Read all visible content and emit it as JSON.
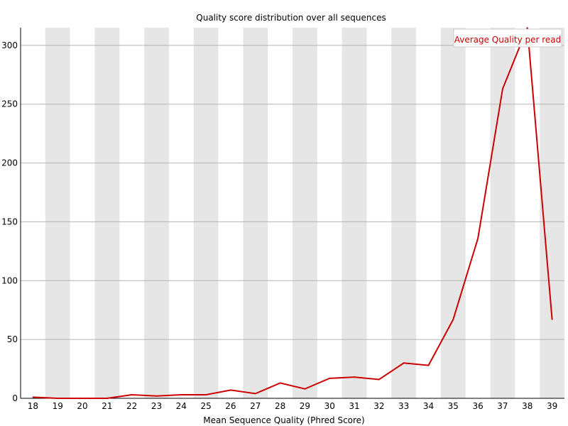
{
  "chart_data": {
    "type": "line",
    "title": "Quality score distribution over all sequences",
    "xlabel": "Mean Sequence Quality (Phred Score)",
    "ylabel": "",
    "x": [
      18,
      19,
      20,
      21,
      22,
      23,
      24,
      25,
      26,
      27,
      28,
      29,
      30,
      31,
      32,
      33,
      34,
      35,
      36,
      37,
      38,
      39
    ],
    "xlim": [
      18,
      39
    ],
    "ylim": [
      0,
      315
    ],
    "yticks": [
      0,
      50,
      100,
      150,
      200,
      250,
      300
    ],
    "series": [
      {
        "name": "Average Quality per read",
        "color": "#cc0000",
        "values": [
          1,
          0,
          0,
          0,
          3,
          2,
          3,
          3,
          7,
          4,
          13,
          8,
          17,
          18,
          16,
          30,
          28,
          67,
          136,
          263,
          315,
          67
        ]
      }
    ],
    "grid": true,
    "alternating_bands": true,
    "legend_position": "top-right"
  }
}
